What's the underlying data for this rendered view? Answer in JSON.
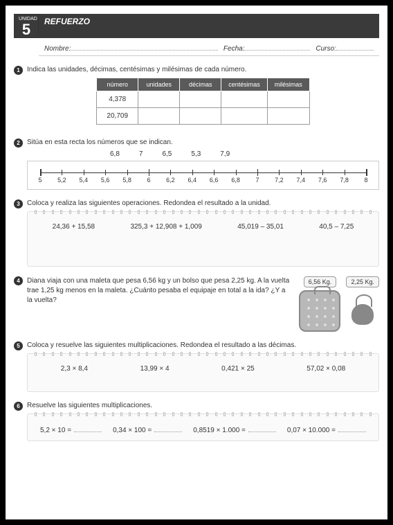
{
  "header": {
    "unit_label": "UNIDAD",
    "unit_number": "5",
    "title": "REFUERZO",
    "nombre_label": "Nombre:",
    "fecha_label": "Fecha:",
    "curso_label": "Curso:"
  },
  "ex1": {
    "num": "1",
    "text": "Indica las unidades, décimas, centésimas y milésimas de cada número.",
    "headers": [
      "número",
      "unidades",
      "décimas",
      "centésimas",
      "milésimas"
    ],
    "rows": [
      [
        "4,378",
        "",
        "",
        "",
        ""
      ],
      [
        "20,709",
        "",
        "",
        "",
        ""
      ]
    ]
  },
  "ex2": {
    "num": "2",
    "text": "Sitúa en esta recta los números que se indican.",
    "given": [
      "6,8",
      "7",
      "6,5",
      "5,3",
      "7,9"
    ],
    "ticks": {
      "start": 5,
      "end": 8,
      "step": 0.2,
      "labels": [
        "5",
        "5,2",
        "5,4",
        "5,6",
        "5,8",
        "6",
        "6,2",
        "6,4",
        "6,6",
        "6,8",
        "7",
        "7,2",
        "7,4",
        "7,6",
        "7,8",
        "8"
      ]
    }
  },
  "ex3": {
    "num": "3",
    "text": "Coloca y realiza las siguientes operaciones. Redondea el resultado a la unidad.",
    "ops": [
      "24,36 + 15,58",
      "325,3 + 12,908 + 1,009",
      "45,019 – 35,01",
      "40,5 – 7,25"
    ]
  },
  "ex4": {
    "num": "4",
    "text": "Diana viaja con una maleta que pesa 6,56 kg y un bolso que pesa 2,25 kg. A la vuelta trae 1,25 kg menos en la maleta. ¿Cuánto pesaba el equipaje en total a la ida? ¿Y a la vuelta?",
    "w1": "6,56 Kg.",
    "w2": "2,25 Kg."
  },
  "ex5": {
    "num": "5",
    "text": "Coloca y resuelve las siguientes multiplicaciones. Redondea el resultado a las décimas.",
    "ops": [
      "2,3 × 8,4",
      "13,99 × 4",
      "0,421 × 25",
      "57,02 × 0,08"
    ]
  },
  "ex6": {
    "num": "6",
    "text": "Resuelve las siguientes multiplicaciones.",
    "ops": [
      "5,2 × 10 =",
      "0,34 × 100 =",
      "0,8519 × 1.000 =",
      "0,07 × 10.000 ="
    ]
  }
}
